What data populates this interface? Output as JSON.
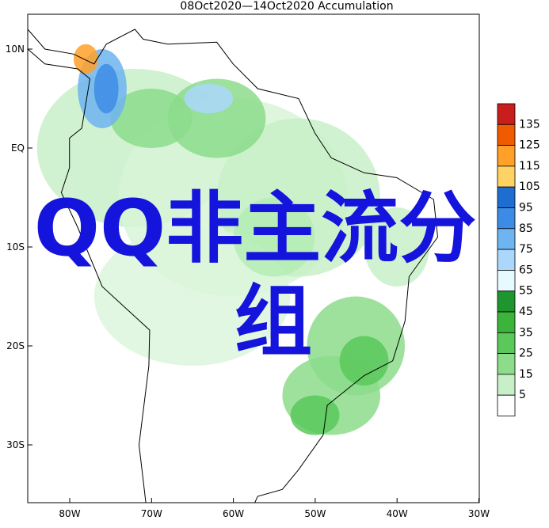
{
  "title": "08Oct2020—14Oct2020 Accumulation",
  "latitude_labels": [
    "10N",
    "EQ",
    "10S",
    "20S",
    "30S"
  ],
  "longitude_labels": [
    "80W",
    "70W",
    "60W",
    "50W",
    "40W",
    "30W"
  ],
  "colorbar": {
    "labels": [
      "135",
      "125",
      "115",
      "105",
      "95",
      "85",
      "75",
      "65",
      "55",
      "45",
      "35",
      "25",
      "15",
      "5"
    ],
    "colors": [
      "#c81e1e",
      "#f05a00",
      "#ffa028",
      "#ffd264",
      "#1e6ed2",
      "#3c8ce6",
      "#6eb4f0",
      "#aad7fa",
      "#e6faff",
      "#1e962d",
      "#3cb43c",
      "#5ac85a",
      "#8cdc8c",
      "#c8f0c8",
      "#ffffff"
    ]
  },
  "overlay_text": {
    "line1": "QQ非主流分",
    "line2": "组"
  }
}
